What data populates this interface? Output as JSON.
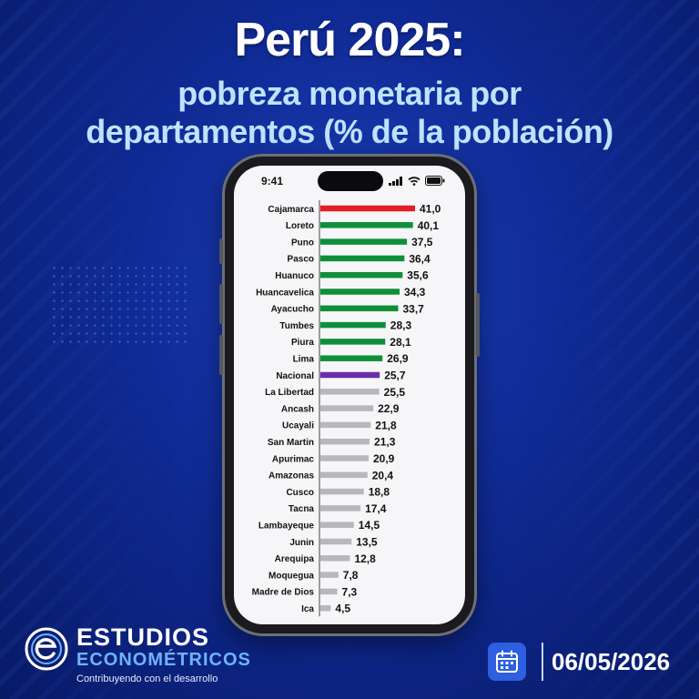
{
  "title": "Perú 2025:",
  "subtitle_line1": "pobreza monetaria por",
  "subtitle_line2": "departamentos (% de la población)",
  "phone": {
    "time": "9:41"
  },
  "brand": {
    "name_line1": "ESTUDIOS",
    "name_line2": "ECONOMÉTRICOS",
    "tagline": "Contribuyendo con el desarrollo"
  },
  "date": "06/05/2026",
  "colors": {
    "top": "#e41e26",
    "high": "#0f8f3a",
    "national": "#6a2fa8",
    "other": "#b8b8bc"
  },
  "chart_data": {
    "type": "bar",
    "orientation": "horizontal",
    "categories": [
      "Cajamarca",
      "Loreto",
      "Puno",
      "Pasco",
      "Huanuco",
      "Huancavelica",
      "Ayacucho",
      "Tumbes",
      "Piura",
      "Lima",
      "Nacional",
      "La Libertad",
      "Ancash",
      "Ucayali",
      "San Martin",
      "Apurimac",
      "Amazonas",
      "Cusco",
      "Tacna",
      "Lambayeque",
      "Junin",
      "Arequipa",
      "Moquegua",
      "Madre de Dios",
      "Ica"
    ],
    "values": [
      41.0,
      40.1,
      37.5,
      36.4,
      35.6,
      34.3,
      33.7,
      28.3,
      28.1,
      26.9,
      25.7,
      25.5,
      22.9,
      21.8,
      21.3,
      20.9,
      20.4,
      18.8,
      17.4,
      14.5,
      13.5,
      12.8,
      7.8,
      7.3,
      4.5
    ],
    "value_labels": [
      "41,0",
      "40,1",
      "37,5",
      "36,4",
      "35,6",
      "34,3",
      "33,7",
      "28,3",
      "28,1",
      "26,9",
      "25,7",
      "25,5",
      "22,9",
      "21,8",
      "21,3",
      "20,9",
      "20,4",
      "18,8",
      "17,4",
      "14,5",
      "13,5",
      "12,8",
      "7,8",
      "7,3",
      "4,5"
    ],
    "color_groups": [
      "top",
      "high",
      "high",
      "high",
      "high",
      "high",
      "high",
      "high",
      "high",
      "high",
      "national",
      "other",
      "other",
      "other",
      "other",
      "other",
      "other",
      "other",
      "other",
      "other",
      "other",
      "other",
      "other",
      "other",
      "other"
    ],
    "title": "",
    "xlabel": "",
    "ylabel": "",
    "xlim": [
      0,
      41
    ],
    "grid": false,
    "legend": "none"
  }
}
